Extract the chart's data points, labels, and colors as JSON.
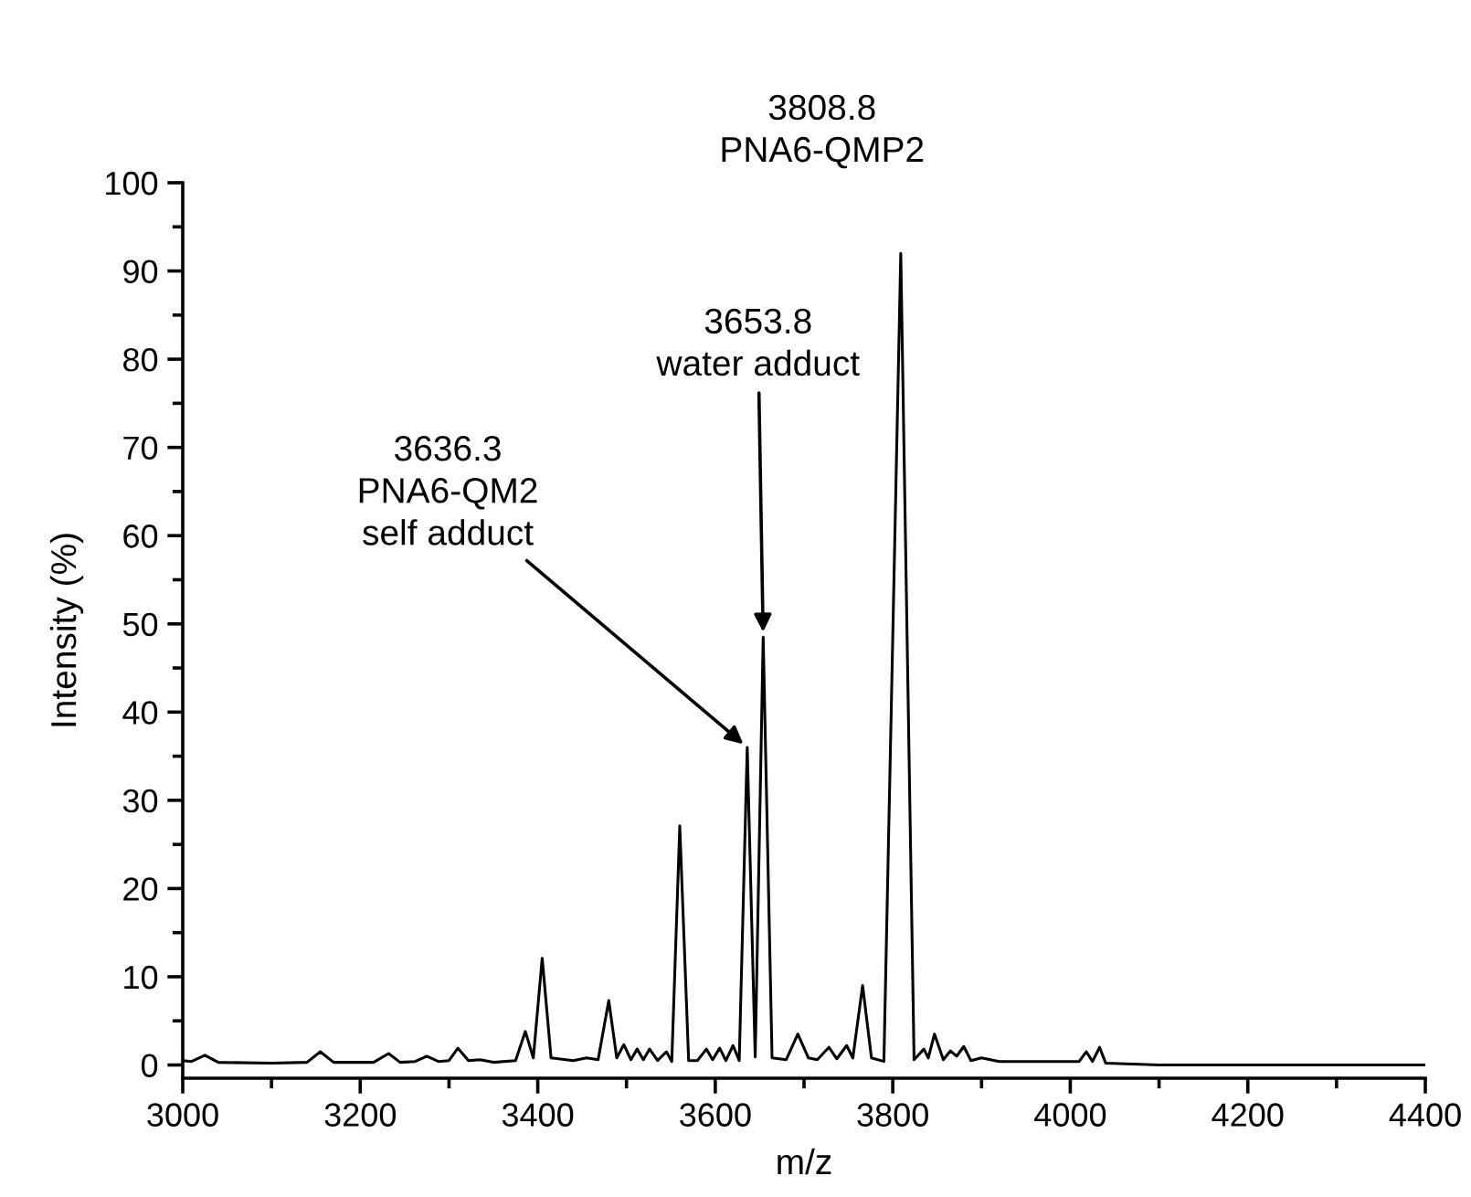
{
  "chart_data": {
    "type": "line",
    "xlabel": "m/z",
    "ylabel": "Intensity (%)",
    "series": [
      {
        "color": "#000000",
        "x": [
          3000,
          3010,
          3025,
          3040,
          3100,
          3140,
          3155,
          3170,
          3215,
          3232,
          3245,
          3262,
          3275,
          3288,
          3300,
          3310,
          3322,
          3335,
          3350,
          3375,
          3386,
          3395,
          3405,
          3415,
          3440,
          3455,
          3468,
          3480,
          3489,
          3497,
          3505,
          3512,
          3519,
          3526,
          3535,
          3545,
          3551,
          3560,
          3570,
          3580,
          3590,
          3597,
          3605,
          3612,
          3620,
          3627,
          3636,
          3645,
          3654,
          3664,
          3680,
          3693,
          3705,
          3715,
          3728,
          3737,
          3748,
          3755,
          3766,
          3776,
          3790,
          3809,
          3824,
          3835,
          3840,
          3847,
          3857,
          3865,
          3872,
          3880,
          3888,
          3900,
          3920,
          3960,
          3995,
          4010,
          4018,
          4025,
          4033,
          4040,
          4100,
          4400
        ],
        "values": [
          0.5,
          0.4,
          1.1,
          0.3,
          0.2,
          0.3,
          1.5,
          0.3,
          0.3,
          1.3,
          0.3,
          0.4,
          1.0,
          0.4,
          0.5,
          1.9,
          0.5,
          0.6,
          0.3,
          0.5,
          3.8,
          0.8,
          12.1,
          0.8,
          0.5,
          0.8,
          0.6,
          7.3,
          0.8,
          2.3,
          0.6,
          1.8,
          0.6,
          1.8,
          0.5,
          1.5,
          0.4,
          27.1,
          0.5,
          0.5,
          1.8,
          0.6,
          1.9,
          0.5,
          2.2,
          0.5,
          36.0,
          0.9,
          48.5,
          0.8,
          0.6,
          3.5,
          0.8,
          0.6,
          2.0,
          0.7,
          2.2,
          0.8,
          9.0,
          0.8,
          0.4,
          92,
          0.6,
          1.8,
          0.8,
          3.5,
          0.6,
          1.6,
          1.0,
          2.1,
          0.5,
          0.8,
          0.4,
          0.4,
          0.4,
          0.4,
          1.5,
          0.4,
          2.0,
          0.2,
          0,
          0
        ]
      }
    ],
    "xlim": [
      3000,
      4400
    ],
    "ylim": [
      -1.5,
      100
    ],
    "xticks": [
      3000,
      {
        "value": 3100,
        "label": null
      },
      3200,
      {
        "value": 3300,
        "label": null
      },
      3400,
      {
        "value": 3500,
        "label": null
      },
      3600,
      {
        "value": 3700,
        "label": null
      },
      3800,
      {
        "value": 3900,
        "label": null
      },
      4000,
      {
        "value": 4100,
        "label": null
      },
      4200,
      {
        "value": 4300,
        "label": null
      },
      4400
    ],
    "yticks": [
      0,
      {
        "value": 5,
        "label": null
      },
      10,
      {
        "value": 15,
        "label": null
      },
      20,
      {
        "value": 25,
        "label": null
      },
      30,
      {
        "value": 35,
        "label": null
      },
      40,
      {
        "value": 45,
        "label": null
      },
      50,
      {
        "value": 55,
        "label": null
      },
      60,
      {
        "value": 65,
        "label": null
      },
      70,
      {
        "value": 75,
        "label": null
      },
      80,
      {
        "value": 85,
        "label": null
      },
      90,
      {
        "value": 95,
        "label": null
      },
      100
    ],
    "grid": false,
    "legend": false,
    "marker": "none",
    "line_style": "solid",
    "annotations": [
      {
        "text": "3808.8\nPNA6-QMP2",
        "x": 3809,
        "y": 92
      },
      {
        "text": "3653.8\nwater adduct",
        "x": 3654,
        "y": 48.5
      },
      {
        "text": "3636.3\nPNA6-QM2\nself adduct",
        "x": 3636,
        "y": 36.0
      }
    ]
  }
}
